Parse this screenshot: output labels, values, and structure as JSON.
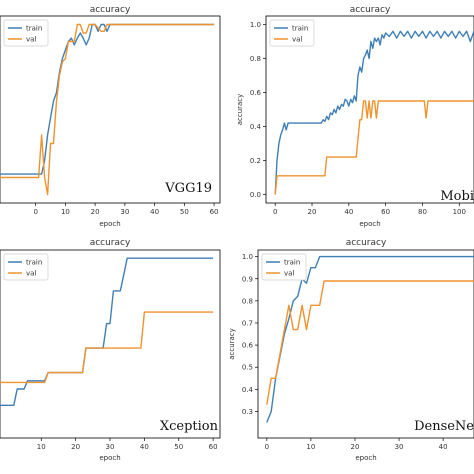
{
  "colors": {
    "train": "#3f7fb5",
    "val": "#f0922e"
  },
  "chart_data": [
    {
      "type": "line",
      "title": "accuracy",
      "xlabel": "epoch",
      "ylabel": "",
      "model_label": "VGG19",
      "xlim": [
        -12,
        62
      ],
      "ylim": [
        -0.05,
        1.05
      ],
      "xticks": [
        "0",
        "10",
        "20",
        "30",
        "40",
        "50",
        "60"
      ],
      "xtick_values": [
        0,
        10,
        20,
        30,
        40,
        50,
        60
      ],
      "yticks": [],
      "ytick_values": [],
      "legend": {
        "position": "top-left",
        "entries": [
          "train",
          "val"
        ]
      },
      "series": [
        {
          "name": "train",
          "color": "train",
          "points": [
            [
              -12,
              0.12
            ],
            [
              0,
              0.12
            ],
            [
              2,
              0.12
            ],
            [
              3,
              0.2
            ],
            [
              4,
              0.35
            ],
            [
              5,
              0.45
            ],
            [
              6,
              0.55
            ],
            [
              7,
              0.6
            ],
            [
              8,
              0.72
            ],
            [
              9,
              0.8
            ],
            [
              10,
              0.85
            ],
            [
              11,
              0.9
            ],
            [
              12,
              0.92
            ],
            [
              13,
              0.88
            ],
            [
              14,
              0.92
            ],
            [
              15,
              0.95
            ],
            [
              16,
              0.92
            ],
            [
              17,
              0.88
            ],
            [
              18,
              0.92
            ],
            [
              19,
              1.0
            ],
            [
              20,
              1.0
            ],
            [
              21,
              0.96
            ],
            [
              22,
              1.0
            ],
            [
              23,
              1.0
            ],
            [
              24,
              0.96
            ],
            [
              25,
              1.0
            ],
            [
              60,
              1.0
            ]
          ]
        },
        {
          "name": "val",
          "color": "val",
          "points": [
            [
              -12,
              0.1
            ],
            [
              0,
              0.1
            ],
            [
              1,
              0.1
            ],
            [
              2,
              0.35
            ],
            [
              3,
              0.1
            ],
            [
              4,
              0.0
            ],
            [
              5,
              0.3
            ],
            [
              6,
              0.3
            ],
            [
              7,
              0.55
            ],
            [
              8,
              0.7
            ],
            [
              9,
              0.78
            ],
            [
              10,
              0.8
            ],
            [
              11,
              0.9
            ],
            [
              12,
              0.9
            ],
            [
              13,
              0.9
            ],
            [
              14,
              1.0
            ],
            [
              15,
              1.0
            ],
            [
              16,
              0.95
            ],
            [
              17,
              0.95
            ],
            [
              18,
              1.0
            ],
            [
              19,
              1.0
            ],
            [
              20,
              1.0
            ],
            [
              22,
              0.96
            ],
            [
              23,
              0.96
            ],
            [
              24,
              1.0
            ],
            [
              60,
              1.0
            ]
          ]
        }
      ]
    },
    {
      "type": "line",
      "title": "accuracy",
      "xlabel": "epoch",
      "ylabel": "accuracy",
      "model_label": "Mobi",
      "xlim": [
        -5,
        108
      ],
      "ylim": [
        -0.05,
        1.05
      ],
      "xticks": [
        "0",
        "20",
        "40",
        "60",
        "80",
        "100"
      ],
      "xtick_values": [
        0,
        20,
        40,
        60,
        80,
        100
      ],
      "yticks": [
        "0.0",
        "0.2",
        "0.4",
        "0.6",
        "0.8",
        "1.0"
      ],
      "ytick_values": [
        0,
        0.2,
        0.4,
        0.6,
        0.8,
        1.0
      ],
      "legend": {
        "position": "top-left",
        "entries": [
          "train",
          "val"
        ]
      },
      "series": [
        {
          "name": "train",
          "color": "train",
          "points": [
            [
              0,
              0.0
            ],
            [
              1,
              0.2
            ],
            [
              2,
              0.3
            ],
            [
              3,
              0.35
            ],
            [
              4,
              0.38
            ],
            [
              5,
              0.42
            ],
            [
              6,
              0.38
            ],
            [
              7,
              0.42
            ],
            [
              10,
              0.42
            ],
            [
              25,
              0.42
            ],
            [
              26,
              0.44
            ],
            [
              27,
              0.43
            ],
            [
              28,
              0.46
            ],
            [
              29,
              0.44
            ],
            [
              30,
              0.48
            ],
            [
              31,
              0.47
            ],
            [
              32,
              0.5
            ],
            [
              33,
              0.48
            ],
            [
              34,
              0.52
            ],
            [
              35,
              0.5
            ],
            [
              36,
              0.53
            ],
            [
              37,
              0.52
            ],
            [
              38,
              0.56
            ],
            [
              39,
              0.55
            ],
            [
              40,
              0.52
            ],
            [
              41,
              0.56
            ],
            [
              42,
              0.54
            ],
            [
              43,
              0.58
            ],
            [
              44,
              0.55
            ],
            [
              45,
              0.7
            ],
            [
              46,
              0.75
            ],
            [
              47,
              0.72
            ],
            [
              48,
              0.8
            ],
            [
              49,
              0.82
            ],
            [
              50,
              0.85
            ],
            [
              51,
              0.8
            ],
            [
              52,
              0.9
            ],
            [
              53,
              0.86
            ],
            [
              54,
              0.92
            ],
            [
              55,
              0.9
            ],
            [
              56,
              0.92
            ],
            [
              57,
              0.88
            ],
            [
              58,
              0.94
            ],
            [
              59,
              0.92
            ],
            [
              60,
              0.95
            ],
            [
              62,
              0.93
            ],
            [
              64,
              0.96
            ],
            [
              66,
              0.92
            ],
            [
              68,
              0.96
            ],
            [
              70,
              0.93
            ],
            [
              72,
              0.96
            ],
            [
              74,
              0.92
            ],
            [
              76,
              0.96
            ],
            [
              78,
              0.93
            ],
            [
              80,
              0.96
            ],
            [
              82,
              0.92
            ],
            [
              84,
              0.96
            ],
            [
              86,
              0.93
            ],
            [
              88,
              0.96
            ],
            [
              90,
              0.92
            ],
            [
              92,
              0.96
            ],
            [
              94,
              0.93
            ],
            [
              96,
              0.96
            ],
            [
              98,
              0.92
            ],
            [
              100,
              0.96
            ],
            [
              102,
              0.93
            ],
            [
              104,
              0.96
            ],
            [
              106,
              0.9
            ],
            [
              108,
              0.96
            ]
          ]
        },
        {
          "name": "val",
          "color": "val",
          "points": [
            [
              0,
              0.0
            ],
            [
              1,
              0.11
            ],
            [
              27,
              0.11
            ],
            [
              28,
              0.22
            ],
            [
              44,
              0.22
            ],
            [
              45,
              0.33
            ],
            [
              46,
              0.44
            ],
            [
              47,
              0.44
            ],
            [
              48,
              0.55
            ],
            [
              49,
              0.55
            ],
            [
              50,
              0.45
            ],
            [
              51,
              0.55
            ],
            [
              52,
              0.45
            ],
            [
              53,
              0.55
            ],
            [
              54,
              0.55
            ],
            [
              55,
              0.45
            ],
            [
              56,
              0.55
            ],
            [
              81,
              0.55
            ],
            [
              82,
              0.45
            ],
            [
              83,
              0.55
            ],
            [
              108,
              0.55
            ]
          ]
        }
      ]
    },
    {
      "type": "line",
      "title": "accuracy",
      "xlabel": "epoch",
      "ylabel": "",
      "model_label": "Xception",
      "xlim": [
        -2,
        62
      ],
      "ylim": [
        -0.1,
        1.05
      ],
      "xticks": [
        "10",
        "20",
        "30",
        "40",
        "50",
        "60"
      ],
      "xtick_values": [
        10,
        20,
        30,
        40,
        50,
        60
      ],
      "yticks": [],
      "ytick_values": [],
      "legend": {
        "position": "top-left",
        "entries": [
          "train",
          "val"
        ]
      },
      "series": [
        {
          "name": "train",
          "color": "train",
          "points": [
            [
              -2,
              0.1
            ],
            [
              2,
              0.1
            ],
            [
              3,
              0.2
            ],
            [
              5,
              0.2
            ],
            [
              6,
              0.25
            ],
            [
              11,
              0.25
            ],
            [
              12,
              0.3
            ],
            [
              22,
              0.3
            ],
            [
              23,
              0.45
            ],
            [
              28,
              0.45
            ],
            [
              29,
              0.6
            ],
            [
              30,
              0.6
            ],
            [
              31,
              0.8
            ],
            [
              33,
              0.8
            ],
            [
              34,
              0.9
            ],
            [
              35,
              1.0
            ],
            [
              60,
              1.0
            ]
          ]
        },
        {
          "name": "val",
          "color": "val",
          "points": [
            [
              -2,
              0.24
            ],
            [
              11,
              0.24
            ],
            [
              12,
              0.3
            ],
            [
              22,
              0.3
            ],
            [
              23,
              0.45
            ],
            [
              39,
              0.45
            ],
            [
              40,
              0.67
            ],
            [
              60,
              0.67
            ]
          ]
        }
      ]
    },
    {
      "type": "line",
      "title": "accuracy",
      "xlabel": "epoch",
      "ylabel": "accuracy",
      "model_label": "DenseNe",
      "xlim": [
        -2,
        47
      ],
      "ylim": [
        0.18,
        1.03
      ],
      "xticks": [
        "0",
        "10",
        "20",
        "30",
        "40"
      ],
      "xtick_values": [
        0,
        10,
        20,
        30,
        40
      ],
      "yticks": [
        "0.3",
        "0.4",
        "0.5",
        "0.6",
        "0.7",
        "0.8",
        "0.9",
        "1.0"
      ],
      "ytick_values": [
        0.3,
        0.4,
        0.5,
        0.6,
        0.7,
        0.8,
        0.9,
        1.0
      ],
      "legend": {
        "position": "top-left",
        "entries": [
          "train",
          "val"
        ]
      },
      "series": [
        {
          "name": "train",
          "color": "train",
          "points": [
            [
              0,
              0.25
            ],
            [
              1,
              0.3
            ],
            [
              2,
              0.45
            ],
            [
              3,
              0.55
            ],
            [
              4,
              0.65
            ],
            [
              5,
              0.72
            ],
            [
              6,
              0.8
            ],
            [
              7,
              0.82
            ],
            [
              8,
              0.9
            ],
            [
              9,
              0.88
            ],
            [
              10,
              0.95
            ],
            [
              11,
              0.95
            ],
            [
              12,
              1.0
            ],
            [
              47,
              1.0
            ]
          ]
        },
        {
          "name": "val",
          "color": "val",
          "points": [
            [
              0,
              0.33
            ],
            [
              1,
              0.45
            ],
            [
              2,
              0.45
            ],
            [
              3,
              0.56
            ],
            [
              4,
              0.67
            ],
            [
              5,
              0.78
            ],
            [
              6,
              0.67
            ],
            [
              7,
              0.67
            ],
            [
              8,
              0.78
            ],
            [
              9,
              0.67
            ],
            [
              10,
              0.78
            ],
            [
              12,
              0.78
            ],
            [
              13,
              0.89
            ],
            [
              47,
              0.89
            ]
          ]
        }
      ]
    }
  ]
}
